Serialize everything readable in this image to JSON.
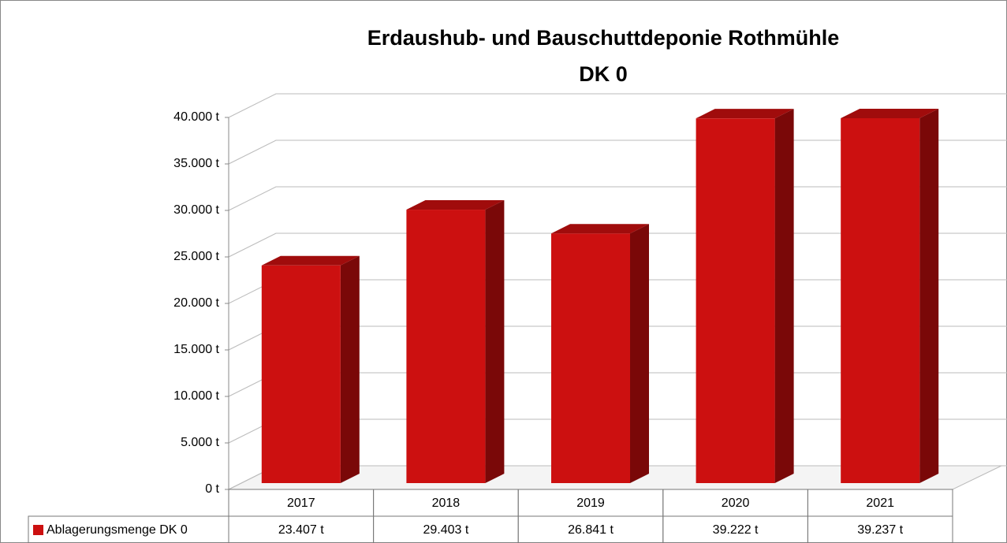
{
  "chart_data": {
    "type": "bar3d",
    "title": "Erdaushub- und Bauschuttdeponie Rothmühle",
    "subtitle": "DK 0",
    "categories": [
      "2017",
      "2018",
      "2019",
      "2020",
      "2021"
    ],
    "series": [
      {
        "name": "Ablagerungsmenge DK 0",
        "color": "#cc1010",
        "values": [
          23407,
          29403,
          26841,
          39222,
          39237
        ],
        "value_labels": [
          "23.407 t",
          "29.403 t",
          "26.841 t",
          "39.222 t",
          "39.237 t"
        ]
      }
    ],
    "ylim": [
      0,
      40000
    ],
    "yticks": [
      {
        "value": 0,
        "label": "0 t"
      },
      {
        "value": 5000,
        "label": "5.000 t"
      },
      {
        "value": 10000,
        "label": "10.000 t"
      },
      {
        "value": 15000,
        "label": "15.000 t"
      },
      {
        "value": 20000,
        "label": "20.000 t"
      },
      {
        "value": 25000,
        "label": "25.000 t"
      },
      {
        "value": 30000,
        "label": "30.000 t"
      },
      {
        "value": 35000,
        "label": "35.000 t"
      },
      {
        "value": 40000,
        "label": "40.000 t"
      }
    ],
    "grid": true
  }
}
